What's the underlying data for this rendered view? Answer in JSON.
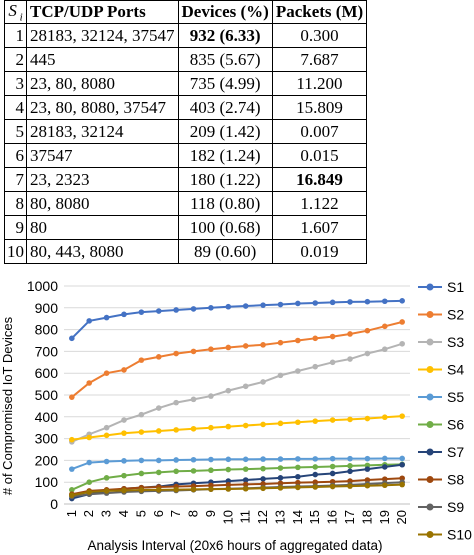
{
  "table": {
    "headers": {
      "si": "S i",
      "ports": "TCP/UDP Ports",
      "devices": "Devices (%)",
      "packets": "Packets (M)"
    },
    "rows": [
      {
        "i": "1",
        "ports": "28183, 32124, 37547",
        "devices": "932 (6.33)",
        "packets": "0.300"
      },
      {
        "i": "2",
        "ports": "445",
        "devices": "835 (5.67)",
        "packets": "7.687"
      },
      {
        "i": "3",
        "ports": "23, 80, 8080",
        "devices": "735 (4.99)",
        "packets": "11.200"
      },
      {
        "i": "4",
        "ports": "23, 80, 8080, 37547",
        "devices": "403 (2.74)",
        "packets": "15.809"
      },
      {
        "i": "5",
        "ports": "28183, 32124",
        "devices": "209 (1.42)",
        "packets": "0.007"
      },
      {
        "i": "6",
        "ports": "37547",
        "devices": "182 (1.24)",
        "packets": "0.015"
      },
      {
        "i": "7",
        "ports": "23, 2323",
        "devices": "180 (1.22)",
        "packets": "16.849"
      },
      {
        "i": "8",
        "ports": "80, 8080",
        "devices": "118 (0.80)",
        "packets": "1.122"
      },
      {
        "i": "9",
        "ports": "80",
        "devices": "100 (0.68)",
        "packets": "1.607"
      },
      {
        "i": "10",
        "ports": "80, 443, 8080",
        "devices": "89 (0.60)",
        "packets": "0.019"
      }
    ]
  },
  "chart_data": {
    "type": "line",
    "title": "",
    "xlabel": "Analysis Interval (20x6 hours of aggregated data)",
    "ylabel": "# of Compromised IoT Devices",
    "x": [
      1,
      2,
      3,
      4,
      5,
      6,
      7,
      8,
      9,
      10,
      11,
      12,
      13,
      14,
      15,
      16,
      17,
      18,
      19,
      20
    ],
    "ylim": [
      0,
      1000
    ],
    "yticks": [
      0,
      100,
      200,
      300,
      400,
      500,
      600,
      700,
      800,
      900,
      1000
    ],
    "grid": true,
    "legend": "right",
    "series": [
      {
        "name": "S1",
        "color": "#4472c4",
        "values": [
          760,
          840,
          855,
          870,
          880,
          885,
          890,
          895,
          900,
          905,
          908,
          912,
          915,
          920,
          922,
          925,
          927,
          928,
          930,
          932
        ]
      },
      {
        "name": "S2",
        "color": "#ed7d31",
        "values": [
          490,
          555,
          600,
          615,
          660,
          675,
          690,
          700,
          710,
          718,
          725,
          730,
          740,
          750,
          760,
          768,
          780,
          795,
          815,
          835
        ]
      },
      {
        "name": "S3",
        "color": "#b4b4b4",
        "values": [
          285,
          320,
          350,
          385,
          410,
          440,
          465,
          480,
          495,
          520,
          540,
          560,
          590,
          610,
          630,
          650,
          665,
          690,
          710,
          735
        ]
      },
      {
        "name": "S4",
        "color": "#ffc000",
        "values": [
          295,
          305,
          315,
          325,
          330,
          335,
          340,
          345,
          350,
          355,
          360,
          365,
          370,
          375,
          380,
          385,
          388,
          392,
          398,
          403
        ]
      },
      {
        "name": "S5",
        "color": "#5b9bd5",
        "values": [
          160,
          190,
          195,
          198,
          200,
          200,
          202,
          203,
          204,
          205,
          205,
          206,
          206,
          207,
          207,
          208,
          208,
          208,
          209,
          209
        ]
      },
      {
        "name": "S6",
        "color": "#70ad47",
        "values": [
          65,
          100,
          120,
          130,
          140,
          145,
          150,
          152,
          155,
          158,
          160,
          162,
          165,
          168,
          170,
          172,
          175,
          177,
          180,
          182
        ]
      },
      {
        "name": "S7",
        "color": "#264478",
        "values": [
          25,
          45,
          60,
          70,
          75,
          80,
          90,
          95,
          100,
          105,
          110,
          115,
          120,
          125,
          135,
          140,
          150,
          160,
          170,
          180
        ]
      },
      {
        "name": "S8",
        "color": "#9e480e",
        "values": [
          45,
          60,
          65,
          70,
          75,
          78,
          80,
          82,
          85,
          88,
          90,
          92,
          95,
          98,
          100,
          102,
          105,
          110,
          114,
          118
        ]
      },
      {
        "name": "S9",
        "color": "#636363",
        "values": [
          35,
          45,
          50,
          55,
          58,
          60,
          62,
          65,
          68,
          70,
          72,
          75,
          78,
          80,
          82,
          85,
          88,
          92,
          96,
          100
        ]
      },
      {
        "name": "S10",
        "color": "#997300",
        "values": [
          40,
          55,
          60,
          62,
          64,
          65,
          66,
          67,
          68,
          69,
          70,
          72,
          74,
          76,
          78,
          80,
          82,
          84,
          86,
          89
        ]
      }
    ]
  }
}
